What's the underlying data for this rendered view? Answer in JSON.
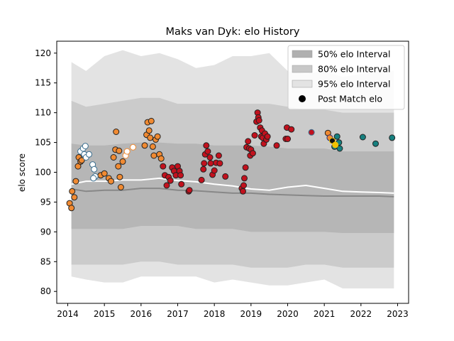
{
  "chart_data": {
    "type": "scatter",
    "title": "Maks van Dyk: elo History",
    "xlabel": "",
    "ylabel": "elo score",
    "xlim": [
      2013.7,
      2023.3
    ],
    "ylim": [
      78,
      122
    ],
    "x_ticks": [
      2014,
      2015,
      2016,
      2017,
      2018,
      2019,
      2020,
      2021,
      2022,
      2023
    ],
    "y_ticks": [
      80,
      85,
      90,
      95,
      100,
      105,
      110,
      115,
      120
    ],
    "grid": false,
    "legend_position": "top-right",
    "legend": [
      {
        "label": "50% elo Interval",
        "kind": "band",
        "color": "#b0b0b0"
      },
      {
        "label": "80% elo Interval",
        "kind": "band",
        "color": "#c8c8c8"
      },
      {
        "label": "95% elo Interval",
        "kind": "band",
        "color": "#e3e3e3"
      },
      {
        "label": "Post Match elo",
        "kind": "marker",
        "color": "#000000"
      }
    ],
    "bands": {
      "x": [
        2014.1,
        2014.5,
        2015.0,
        2015.5,
        2016.0,
        2016.5,
        2017.0,
        2017.5,
        2018.0,
        2018.5,
        2019.0,
        2019.5,
        2020.0,
        2020.5,
        2021.0,
        2021.5,
        2022.0,
        2022.5,
        2022.9
      ],
      "p95_upper": [
        118.5,
        117.0,
        119.5,
        120.5,
        119.5,
        120.0,
        119.0,
        117.5,
        118.0,
        119.5,
        119.5,
        120.0,
        117.0,
        116.5,
        117.0,
        116.0,
        116.5,
        117.0,
        117.0
      ],
      "p95_lower": [
        82.5,
        82.0,
        81.5,
        81.5,
        82.5,
        82.5,
        82.5,
        82.5,
        81.5,
        82.0,
        81.5,
        81.0,
        81.0,
        81.5,
        82.0,
        80.5,
        80.5,
        80.5,
        80.5
      ],
      "p80_upper": [
        112.0,
        111.0,
        111.5,
        112.0,
        112.5,
        112.5,
        111.5,
        111.5,
        111.5,
        111.5,
        111.5,
        111.5,
        111.0,
        110.5,
        110.5,
        110.0,
        110.0,
        110.0,
        110.0
      ],
      "p80_lower": [
        84.5,
        84.5,
        84.5,
        84.5,
        85.0,
        85.0,
        84.5,
        84.5,
        84.5,
        84.5,
        84.0,
        84.0,
        84.0,
        84.5,
        84.5,
        84.0,
        84.0,
        84.0,
        84.0
      ],
      "p50_upper": [
        104.8,
        104.5,
        104.5,
        104.8,
        105.0,
        105.0,
        104.8,
        104.8,
        104.5,
        104.5,
        104.5,
        104.3,
        104.0,
        104.0,
        104.0,
        103.5,
        103.5,
        103.5,
        103.5
      ],
      "p50_lower": [
        90.5,
        90.5,
        90.5,
        90.5,
        91.0,
        91.0,
        91.0,
        90.5,
        90.5,
        90.5,
        90.0,
        90.0,
        90.0,
        90.0,
        90.0,
        89.8,
        89.8,
        89.8,
        89.8
      ],
      "median": [
        97.2,
        96.8,
        97.0,
        97.0,
        97.3,
        97.3,
        97.0,
        96.9,
        96.7,
        96.5,
        96.5,
        96.3,
        96.2,
        96.1,
        96.0,
        96.0,
        96.0,
        96.0,
        95.9
      ],
      "mean": [
        98.0,
        98.5,
        98.5,
        98.7,
        98.7,
        99.0,
        98.6,
        98.4,
        98.0,
        97.7,
        97.2,
        97.0,
        97.5,
        97.8,
        97.3,
        96.8,
        96.7,
        96.6,
        96.5
      ],
      "colors": {
        "p95": "#e3e3e3",
        "p80": "#cbcbcb",
        "p50": "#b6b6b6",
        "median": "#888888",
        "mean": "#ffffff"
      }
    },
    "series": [
      {
        "name": "",
        "face": "#f08a32",
        "edge": "#222222",
        "points": [
          [
            2014.05,
            94.8
          ],
          [
            2014.1,
            94.0
          ],
          [
            2014.12,
            96.8
          ],
          [
            2014.18,
            95.8
          ],
          [
            2014.22,
            98.5
          ],
          [
            2014.28,
            101.0
          ],
          [
            2014.3,
            102.5
          ],
          [
            2014.35,
            101.8
          ],
          [
            2014.38,
            102.0
          ],
          [
            2014.9,
            99.5
          ],
          [
            2015.0,
            99.8
          ],
          [
            2015.12,
            99.0
          ],
          [
            2015.18,
            98.5
          ],
          [
            2015.25,
            102.5
          ],
          [
            2015.3,
            103.8
          ],
          [
            2015.32,
            106.8
          ],
          [
            2015.38,
            101.0
          ],
          [
            2015.42,
            99.2
          ],
          [
            2015.45,
            97.5
          ],
          [
            2016.1,
            104.5
          ],
          [
            2016.15,
            106.3
          ],
          [
            2016.18,
            108.4
          ],
          [
            2016.22,
            107.0
          ],
          [
            2016.25,
            105.8
          ],
          [
            2016.28,
            108.6
          ],
          [
            2016.32,
            104.3
          ],
          [
            2016.35,
            102.8
          ],
          [
            2016.4,
            105.5
          ],
          [
            2016.45,
            106.0
          ],
          [
            2016.5,
            103.0
          ],
          [
            2016.55,
            102.3
          ],
          [
            2021.1,
            106.6
          ]
        ]
      },
      {
        "name": "",
        "face": "#f08a32",
        "edge": "#222222",
        "points": [
          [
            2015.5,
            101.8
          ],
          [
            2015.4,
            103.6
          ]
        ]
      },
      {
        "name": "",
        "face": "#ffffff",
        "edge": "#f08a32",
        "points": [
          [
            2015.58,
            102.8
          ],
          [
            2015.62,
            103.5
          ],
          [
            2015.78,
            104.2
          ]
        ]
      },
      {
        "name": "",
        "face": "#ffffff",
        "edge": "#3a6e8f",
        "points": [
          [
            2014.35,
            103.5
          ],
          [
            2014.42,
            104.0
          ],
          [
            2014.48,
            104.4
          ],
          [
            2014.45,
            103.0
          ],
          [
            2014.5,
            102.5
          ],
          [
            2014.58,
            103.0
          ],
          [
            2014.68,
            101.3
          ],
          [
            2014.72,
            100.5
          ],
          [
            2014.75,
            99.3
          ],
          [
            2014.7,
            99.0
          ]
        ]
      },
      {
        "name": "",
        "face": "#c2111d",
        "edge": "#222222",
        "points": [
          [
            2016.6,
            101.0
          ],
          [
            2016.65,
            99.5
          ],
          [
            2016.7,
            97.8
          ],
          [
            2016.75,
            99.2
          ],
          [
            2016.8,
            98.6
          ],
          [
            2016.85,
            100.8
          ],
          [
            2016.9,
            100.2
          ],
          [
            2016.95,
            99.5
          ],
          [
            2017.0,
            101.0
          ],
          [
            2017.05,
            100.2
          ],
          [
            2017.08,
            99.5
          ],
          [
            2017.1,
            98.0
          ],
          [
            2017.3,
            96.8
          ],
          [
            2017.32,
            97.0
          ],
          [
            2017.65,
            98.7
          ],
          [
            2017.7,
            100.5
          ],
          [
            2017.72,
            101.5
          ],
          [
            2017.75,
            103.0
          ],
          [
            2017.78,
            104.5
          ],
          [
            2017.82,
            103.5
          ],
          [
            2017.88,
            102.5
          ],
          [
            2017.9,
            101.5
          ],
          [
            2017.95,
            99.6
          ],
          [
            2018.0,
            100.3
          ],
          [
            2018.05,
            101.6
          ],
          [
            2018.12,
            102.8
          ],
          [
            2018.15,
            101.5
          ],
          [
            2018.3,
            99.3
          ],
          [
            2018.75,
            97.3
          ],
          [
            2018.78,
            96.8
          ],
          [
            2018.8,
            97.8
          ],
          [
            2018.82,
            99.0
          ],
          [
            2018.85,
            100.8
          ],
          [
            2018.88,
            104.2
          ],
          [
            2018.92,
            105.2
          ],
          [
            2018.95,
            104.0
          ],
          [
            2018.98,
            102.8
          ],
          [
            2019.0,
            103.8
          ],
          [
            2019.05,
            103.2
          ],
          [
            2019.1,
            106.2
          ],
          [
            2019.15,
            108.5
          ],
          [
            2019.18,
            110.0
          ],
          [
            2019.2,
            109.2
          ],
          [
            2019.22,
            108.7
          ],
          [
            2019.25,
            107.5
          ],
          [
            2019.28,
            106.0
          ],
          [
            2019.3,
            107.0
          ],
          [
            2019.32,
            105.8
          ],
          [
            2019.35,
            104.8
          ],
          [
            2019.38,
            106.5
          ],
          [
            2019.42,
            105.5
          ],
          [
            2019.45,
            106.0
          ],
          [
            2019.7,
            104.5
          ],
          [
            2019.95,
            105.6
          ],
          [
            2020.0,
            105.6
          ],
          [
            2019.98,
            107.5
          ],
          [
            2020.1,
            107.2
          ]
        ]
      },
      {
        "name": "",
        "face": "#c2111d",
        "edge": "#3a6e8f",
        "points": [
          [
            2020.65,
            106.7
          ]
        ]
      },
      {
        "name": "",
        "face": "#f08a32",
        "edge": "#2a2a6e",
        "points": [
          [
            2021.15,
            105.8
          ]
        ]
      },
      {
        "name": "",
        "face": "#111111",
        "edge": "#f2c200",
        "points": [
          [
            2021.22,
            105.3
          ]
        ]
      },
      {
        "name": "",
        "face": "#16807f",
        "edge": "#222222",
        "points": [
          [
            2021.28,
            104.3
          ],
          [
            2021.35,
            106.0
          ],
          [
            2021.4,
            105.0
          ],
          [
            2021.42,
            104.0
          ],
          [
            2022.05,
            105.9
          ],
          [
            2022.4,
            104.8
          ],
          [
            2022.85,
            105.8
          ]
        ]
      },
      {
        "name": "",
        "face": "#f2c200",
        "edge": "#f2c200",
        "points": [
          [
            2021.3,
            104.6
          ]
        ]
      }
    ]
  }
}
